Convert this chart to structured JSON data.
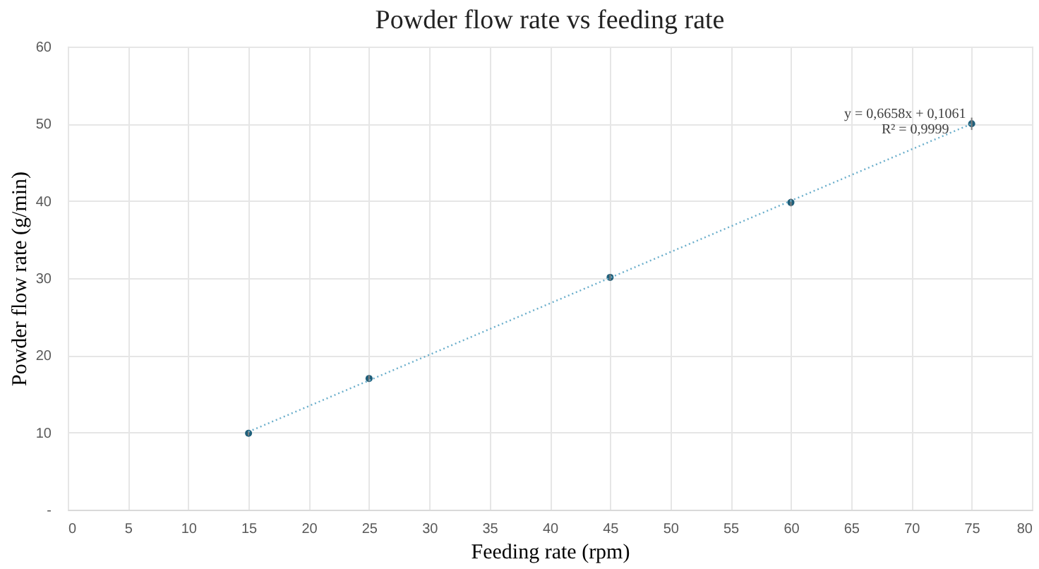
{
  "chart_data": {
    "type": "scatter",
    "title": "Powder flow rate vs feeding rate",
    "xlabel": "Feeding rate (rpm)",
    "ylabel": "Powder flow rate (g/min)",
    "series": [
      {
        "color": "#1f5f7a",
        "x": [
          15,
          25,
          45,
          60,
          75
        ],
        "values": [
          9.9,
          17.0,
          30.1,
          39.8,
          50.0
        ],
        "errors": [
          0.3,
          0.4,
          0.4,
          0.5,
          0.8
        ],
        "marker": "circle"
      },
      {
        "type": "line",
        "color": "#6aaecb",
        "x": [
          15,
          75
        ],
        "values": [
          10.1,
          50.0
        ],
        "line_style": "dotted"
      }
    ],
    "xlim": [
      0,
      80
    ],
    "xticks": [
      0,
      5,
      10,
      15,
      20,
      25,
      30,
      35,
      40,
      45,
      50,
      55,
      60,
      65,
      70,
      75,
      80
    ],
    "ylim": [
      0,
      60
    ],
    "yticks": [
      {
        "value": 0,
        "label": "-"
      },
      10,
      20,
      30,
      40,
      50,
      60
    ],
    "grid": true,
    "annotations": [
      {
        "text": "y = 0,6658x + 0,1061",
        "x": 75,
        "y": 50
      },
      {
        "text": "R² = 0,9999",
        "x": 75,
        "y": 50
      }
    ]
  }
}
